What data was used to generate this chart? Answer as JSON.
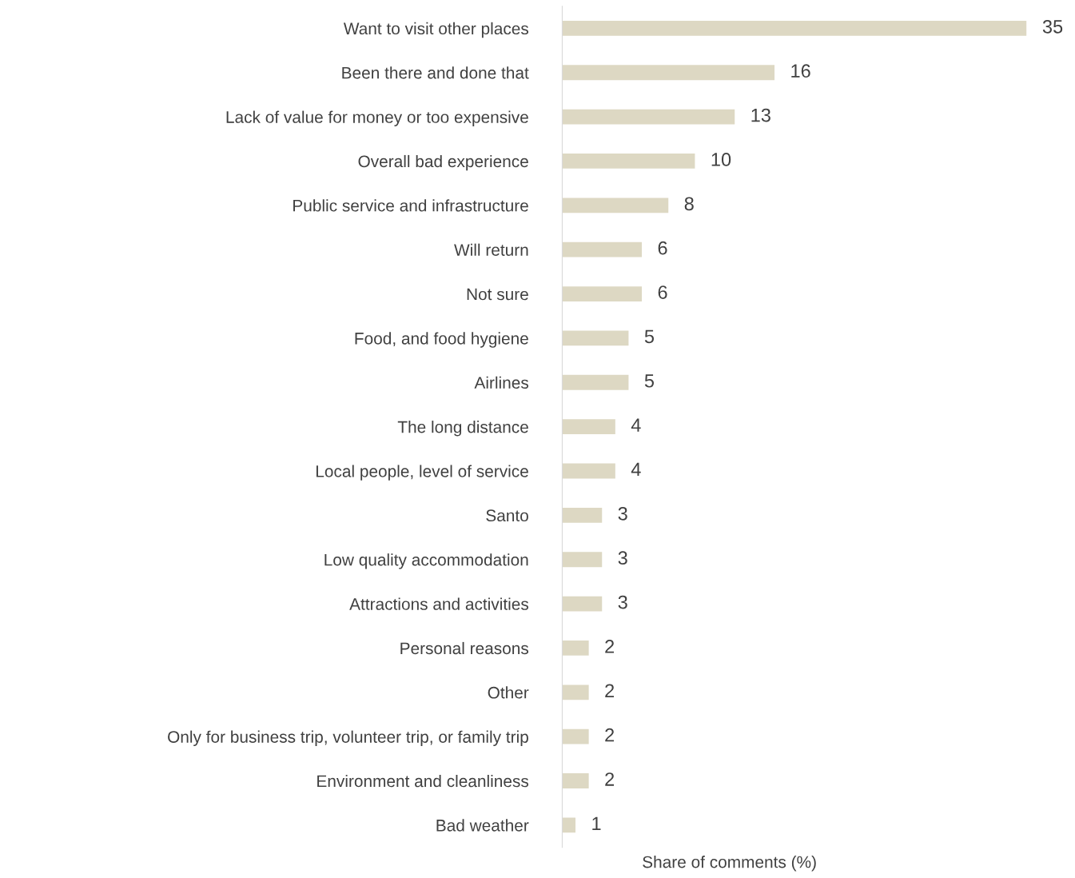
{
  "chart_data": {
    "type": "bar",
    "orientation": "horizontal",
    "data_labels": true,
    "grid": false,
    "legend": false,
    "xlabel": "Share of comments (%)",
    "categories": [
      "Want to visit other places",
      "Been there and done that",
      "Lack of value for money or too expensive",
      "Overall bad experience",
      "Public service and infrastructure",
      "Will return",
      "Not sure",
      "Food, and food hygiene",
      "Airlines",
      "The long distance",
      "Local people, level of service",
      "Santo",
      "Low quality accommodation",
      "Attractions and activities",
      "Personal reasons",
      "Other",
      "Only for business trip, volunteer trip, or family trip",
      "Environment and cleanliness",
      "Bad weather"
    ],
    "values": [
      35,
      16,
      13,
      10,
      8,
      6,
      6,
      5,
      5,
      4,
      4,
      3,
      3,
      3,
      2,
      2,
      2,
      2,
      1
    ],
    "color": "#ddd8c3"
  }
}
